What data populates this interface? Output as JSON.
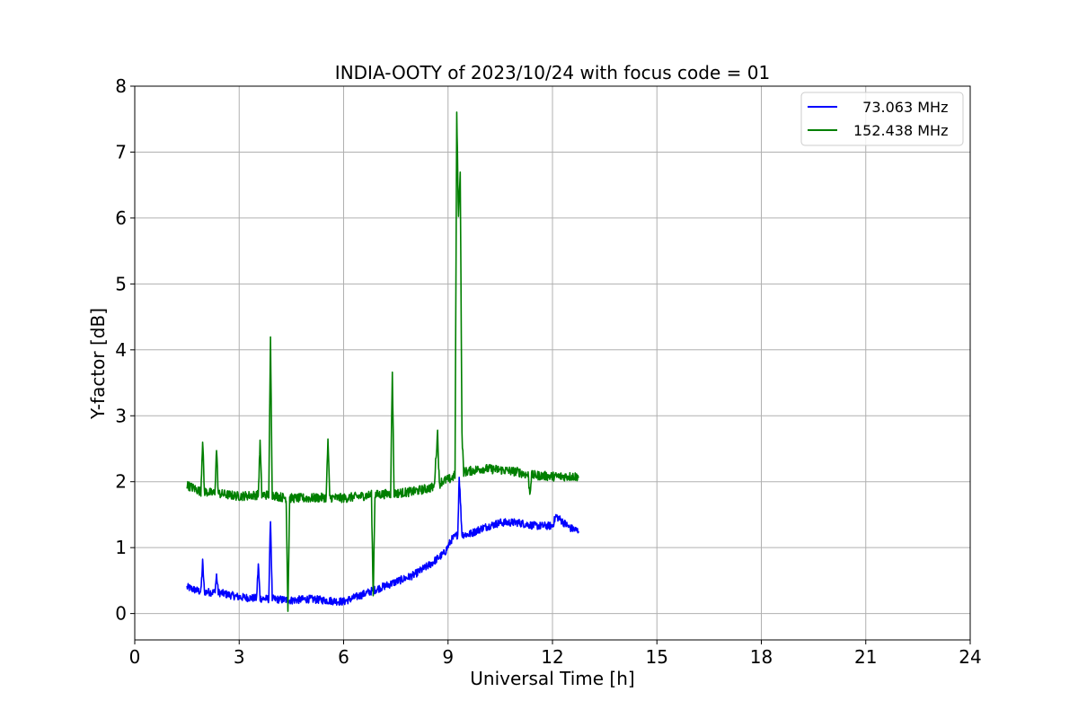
{
  "chart_data": {
    "type": "line",
    "title": "INDIA-OOTY of 2023/10/24 with focus code = 01",
    "xlabel": "Universal Time [h]",
    "ylabel": "Y-factor [dB]",
    "xlim": [
      0,
      24
    ],
    "ylim": [
      -0.4,
      8
    ],
    "xticks": [
      0,
      3,
      6,
      9,
      12,
      15,
      18,
      21,
      24
    ],
    "yticks": [
      0,
      1,
      2,
      3,
      4,
      5,
      6,
      7,
      8
    ],
    "grid": true,
    "legend_position": "top-right",
    "series": [
      {
        "name": "  73.063 MHz",
        "color": "#0000ff",
        "noise": 0.06,
        "x": [
          1.5,
          1.9,
          1.95,
          2.0,
          2.3,
          2.35,
          2.4,
          3.0,
          3.5,
          3.55,
          3.6,
          3.85,
          3.9,
          3.95,
          4.5,
          5.0,
          5.5,
          6.0,
          6.5,
          7.0,
          7.5,
          8.0,
          8.5,
          8.9,
          9.1,
          9.28,
          9.32,
          9.4,
          9.6,
          10.0,
          10.5,
          11.0,
          11.5,
          12.0,
          12.1,
          12.5,
          12.75
        ],
        "y": [
          0.4,
          0.33,
          0.78,
          0.33,
          0.32,
          0.58,
          0.32,
          0.25,
          0.23,
          0.75,
          0.23,
          0.22,
          1.45,
          0.22,
          0.2,
          0.22,
          0.2,
          0.18,
          0.28,
          0.38,
          0.48,
          0.58,
          0.75,
          0.92,
          1.12,
          1.2,
          2.1,
          1.2,
          1.2,
          1.3,
          1.38,
          1.38,
          1.33,
          1.33,
          1.48,
          1.3,
          1.25
        ]
      },
      {
        "name": "152.438 MHz",
        "color": "#007f00",
        "noise": 0.07,
        "x": [
          1.5,
          1.9,
          1.95,
          2.0,
          2.3,
          2.35,
          2.4,
          3.0,
          3.55,
          3.6,
          3.65,
          3.85,
          3.9,
          3.95,
          4.35,
          4.4,
          4.45,
          5.0,
          5.5,
          5.55,
          5.6,
          6.0,
          6.5,
          6.8,
          6.85,
          6.9,
          7.35,
          7.4,
          7.45,
          8.0,
          8.6,
          8.7,
          8.75,
          8.8,
          9.1,
          9.2,
          9.25,
          9.3,
          9.35,
          9.4,
          9.45,
          9.5,
          10.0,
          10.5,
          11.0,
          11.3,
          11.35,
          11.4,
          12.0,
          12.5,
          12.75
        ],
        "y": [
          1.95,
          1.85,
          2.65,
          1.85,
          1.82,
          2.5,
          1.82,
          1.78,
          1.8,
          2.6,
          1.8,
          1.8,
          4.15,
          1.8,
          1.75,
          0.05,
          1.75,
          1.75,
          1.76,
          2.65,
          1.76,
          1.75,
          1.78,
          1.8,
          0.25,
          1.8,
          1.82,
          3.68,
          1.82,
          1.85,
          1.92,
          2.75,
          1.95,
          2.0,
          2.05,
          2.1,
          7.6,
          6.0,
          6.75,
          2.7,
          2.15,
          2.15,
          2.2,
          2.18,
          2.15,
          2.1,
          1.82,
          2.1,
          2.08,
          2.08,
          2.08
        ]
      }
    ]
  }
}
